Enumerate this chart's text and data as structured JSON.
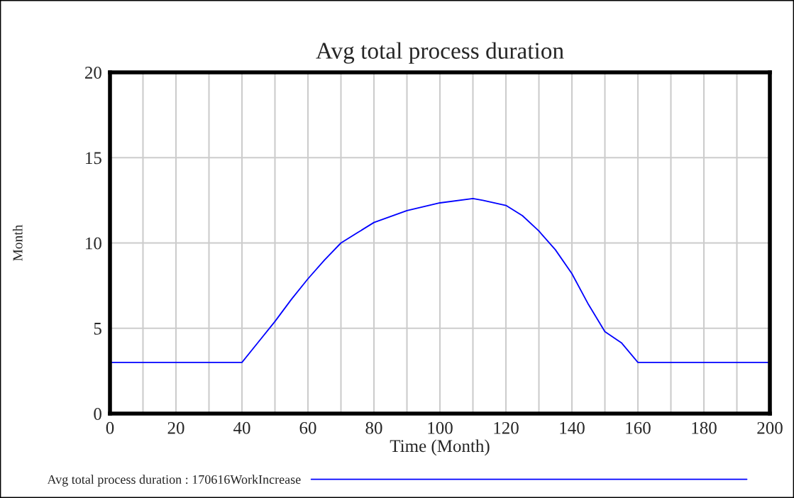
{
  "chart_data": {
    "type": "line",
    "title": "Avg total process duration",
    "xlabel": "Time (Month)",
    "ylabel": "Month",
    "x": [
      0,
      40,
      45,
      50,
      55,
      60,
      65,
      70,
      75,
      80,
      90,
      100,
      110,
      113,
      120,
      125,
      130,
      135,
      140,
      145,
      150,
      155,
      160,
      200
    ],
    "series": [
      {
        "name": "Avg total process duration : 170616WorkIncrease",
        "color": "#0000ff",
        "values": [
          3,
          3,
          4.2,
          5.4,
          6.7,
          7.9,
          9.0,
          10.0,
          10.6,
          11.2,
          11.9,
          12.35,
          12.6,
          12.5,
          12.2,
          11.6,
          10.7,
          9.6,
          8.2,
          6.4,
          4.8,
          4.15,
          3,
          3
        ]
      }
    ],
    "xlim": [
      0,
      200
    ],
    "xticks": [
      0,
      20,
      40,
      60,
      80,
      100,
      120,
      140,
      160,
      180,
      200
    ],
    "ylim": [
      0,
      20
    ],
    "yticks": [
      0,
      5,
      10,
      15,
      20
    ],
    "grid": true,
    "legend": "bottom",
    "marker": "none",
    "line_style": "solid"
  }
}
